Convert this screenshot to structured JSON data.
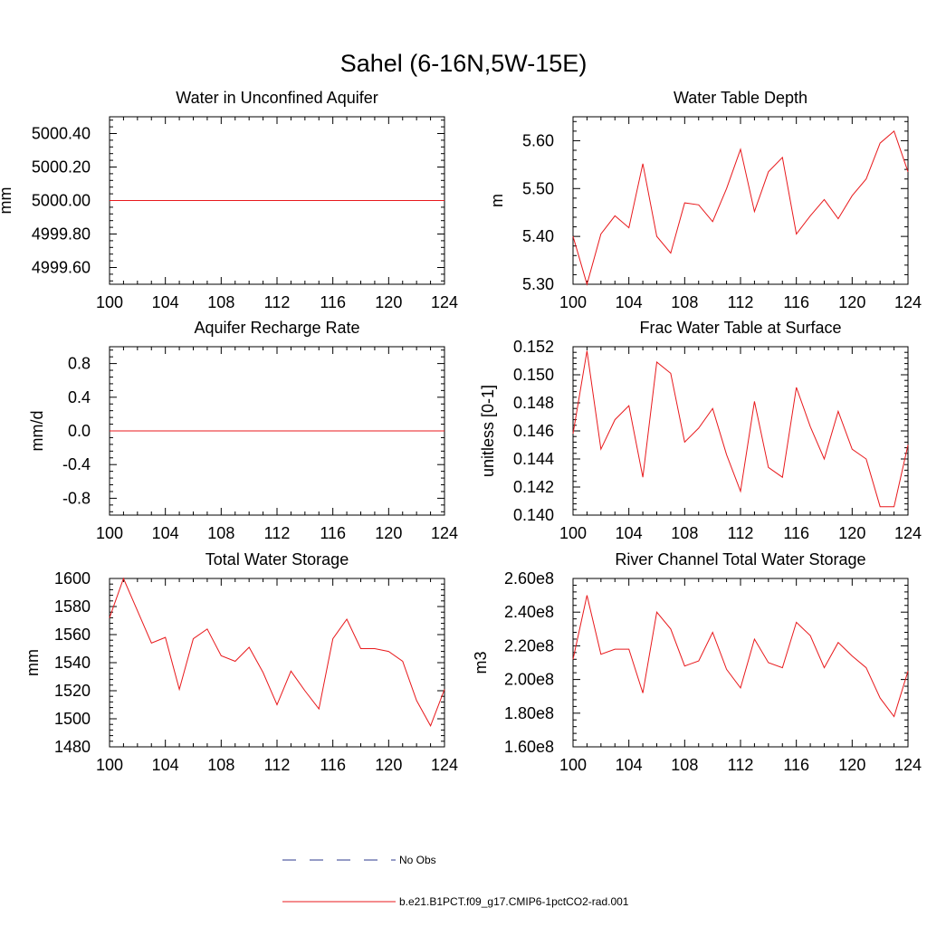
{
  "figure": {
    "title": "Sahel (6-16N,5W-15E)"
  },
  "legend": {
    "items": [
      {
        "label": "No Obs",
        "color": "#2e3a8c",
        "dash": true
      },
      {
        "label": "b.e21.B1PCT.f09_g17.CMIP6-1pctCO2-rad.001",
        "color": "#e8191c",
        "dash": false
      }
    ]
  },
  "chart_data": [
    {
      "type": "line",
      "title": "Water in Unconfined Aquifer",
      "ylabel": "mm",
      "xlim": [
        100,
        124
      ],
      "ylim": [
        4999.5,
        5000.5
      ],
      "xticks": [
        100,
        104,
        108,
        112,
        116,
        120,
        124
      ],
      "yticks": [
        4999.6,
        4999.8,
        5000.0,
        5000.2,
        5000.4
      ],
      "ytick_labels": [
        "4999.60",
        "4999.80",
        "5000.00",
        "5000.20",
        "5000.40"
      ],
      "series": [
        {
          "color": "#e8191c",
          "x": [
            100,
            124
          ],
          "values": [
            5000.0,
            5000.0
          ]
        }
      ]
    },
    {
      "type": "line",
      "title": "Water Table Depth",
      "ylabel": "m",
      "xlim": [
        100,
        124
      ],
      "ylim": [
        5.3,
        5.65
      ],
      "xticks": [
        100,
        104,
        108,
        112,
        116,
        120,
        124
      ],
      "yticks": [
        5.3,
        5.4,
        5.5,
        5.6
      ],
      "ytick_labels": [
        "5.30",
        "5.40",
        "5.50",
        "5.60"
      ],
      "series": [
        {
          "color": "#e8191c",
          "x": [
            100,
            101,
            102,
            103,
            104,
            105,
            106,
            107,
            108,
            109,
            110,
            111,
            112,
            113,
            114,
            115,
            116,
            117,
            118,
            119,
            120,
            121,
            122,
            123,
            124
          ],
          "values": [
            5.4,
            5.3,
            5.405,
            5.443,
            5.418,
            5.552,
            5.4,
            5.365,
            5.47,
            5.466,
            5.431,
            5.5,
            5.582,
            5.452,
            5.535,
            5.565,
            5.405,
            5.443,
            5.477,
            5.437,
            5.485,
            5.52,
            5.595,
            5.62,
            5.535
          ]
        }
      ]
    },
    {
      "type": "line",
      "title": "Aquifer Recharge Rate",
      "ylabel": "mm/d",
      "xlim": [
        100,
        124
      ],
      "ylim": [
        -1.0,
        1.0
      ],
      "xticks": [
        100,
        104,
        108,
        112,
        116,
        120,
        124
      ],
      "yticks": [
        -0.8,
        -0.4,
        0.0,
        0.4,
        0.8
      ],
      "ytick_labels": [
        "-0.8",
        "-0.4",
        "0.0",
        "0.4",
        "0.8"
      ],
      "series": [
        {
          "color": "#e8191c",
          "x": [
            100,
            124
          ],
          "values": [
            0.0,
            0.0
          ]
        }
      ]
    },
    {
      "type": "line",
      "title": "Frac Water Table at Surface",
      "ylabel": "unitless [0-1]",
      "xlim": [
        100,
        124
      ],
      "ylim": [
        0.14,
        0.152
      ],
      "xticks": [
        100,
        104,
        108,
        112,
        116,
        120,
        124
      ],
      "yticks": [
        0.14,
        0.142,
        0.144,
        0.146,
        0.148,
        0.15,
        0.152
      ],
      "ytick_labels": [
        "0.140",
        "0.142",
        "0.144",
        "0.146",
        "0.148",
        "0.150",
        "0.152"
      ],
      "series": [
        {
          "color": "#e8191c",
          "x": [
            100,
            101,
            102,
            103,
            104,
            105,
            106,
            107,
            108,
            109,
            110,
            111,
            112,
            113,
            114,
            115,
            116,
            117,
            118,
            119,
            120,
            121,
            122,
            123,
            124
          ],
          "values": [
            0.1458,
            0.1517,
            0.1447,
            0.1468,
            0.1478,
            0.1427,
            0.1509,
            0.1501,
            0.1452,
            0.1462,
            0.1476,
            0.1443,
            0.1417,
            0.1481,
            0.1434,
            0.1427,
            0.1491,
            0.1463,
            0.144,
            0.1474,
            0.1447,
            0.144,
            0.1406,
            0.1406,
            0.145
          ]
        }
      ]
    },
    {
      "type": "line",
      "title": "Total Water Storage",
      "ylabel": "mm",
      "xlim": [
        100,
        124
      ],
      "ylim": [
        1480,
        1600
      ],
      "xticks": [
        100,
        104,
        108,
        112,
        116,
        120,
        124
      ],
      "yticks": [
        1480,
        1500,
        1520,
        1540,
        1560,
        1580,
        1600
      ],
      "ytick_labels": [
        "1480",
        "1500",
        "1520",
        "1540",
        "1560",
        "1580",
        "1600"
      ],
      "series": [
        {
          "color": "#e8191c",
          "x": [
            100,
            101,
            102,
            103,
            104,
            105,
            106,
            107,
            108,
            109,
            110,
            111,
            112,
            113,
            114,
            115,
            116,
            117,
            118,
            119,
            120,
            121,
            122,
            123,
            124
          ],
          "values": [
            1572,
            1600,
            1577,
            1554,
            1558,
            1521,
            1557,
            1564,
            1545,
            1541,
            1551,
            1533,
            1510,
            1534,
            1520,
            1507,
            1557,
            1571,
            1550,
            1550,
            1548,
            1541,
            1513,
            1495,
            1521
          ]
        }
      ]
    },
    {
      "type": "line",
      "title": "River Channel Total Water Storage",
      "ylabel": "m3",
      "xlim": [
        100,
        124
      ],
      "ylim": [
        160000000,
        260000000
      ],
      "xticks": [
        100,
        104,
        108,
        112,
        116,
        120,
        124
      ],
      "yticks": [
        160000000,
        180000000,
        200000000,
        220000000,
        240000000,
        260000000
      ],
      "ytick_labels": [
        "1.60e8",
        "1.80e8",
        "2.00e8",
        "2.20e8",
        "2.40e8",
        "2.60e8"
      ],
      "series": [
        {
          "color": "#e8191c",
          "x": [
            100,
            101,
            102,
            103,
            104,
            105,
            106,
            107,
            108,
            109,
            110,
            111,
            112,
            113,
            114,
            115,
            116,
            117,
            118,
            119,
            120,
            121,
            122,
            123,
            124
          ],
          "values": [
            212000000,
            250000000,
            215000000,
            218000000,
            218000000,
            192000000,
            240000000,
            230000000,
            208000000,
            211000000,
            228000000,
            206000000,
            195000000,
            224000000,
            210000000,
            207000000,
            234000000,
            226000000,
            207000000,
            222000000,
            214000000,
            207000000,
            189000000,
            178000000,
            205000000
          ]
        }
      ]
    }
  ]
}
